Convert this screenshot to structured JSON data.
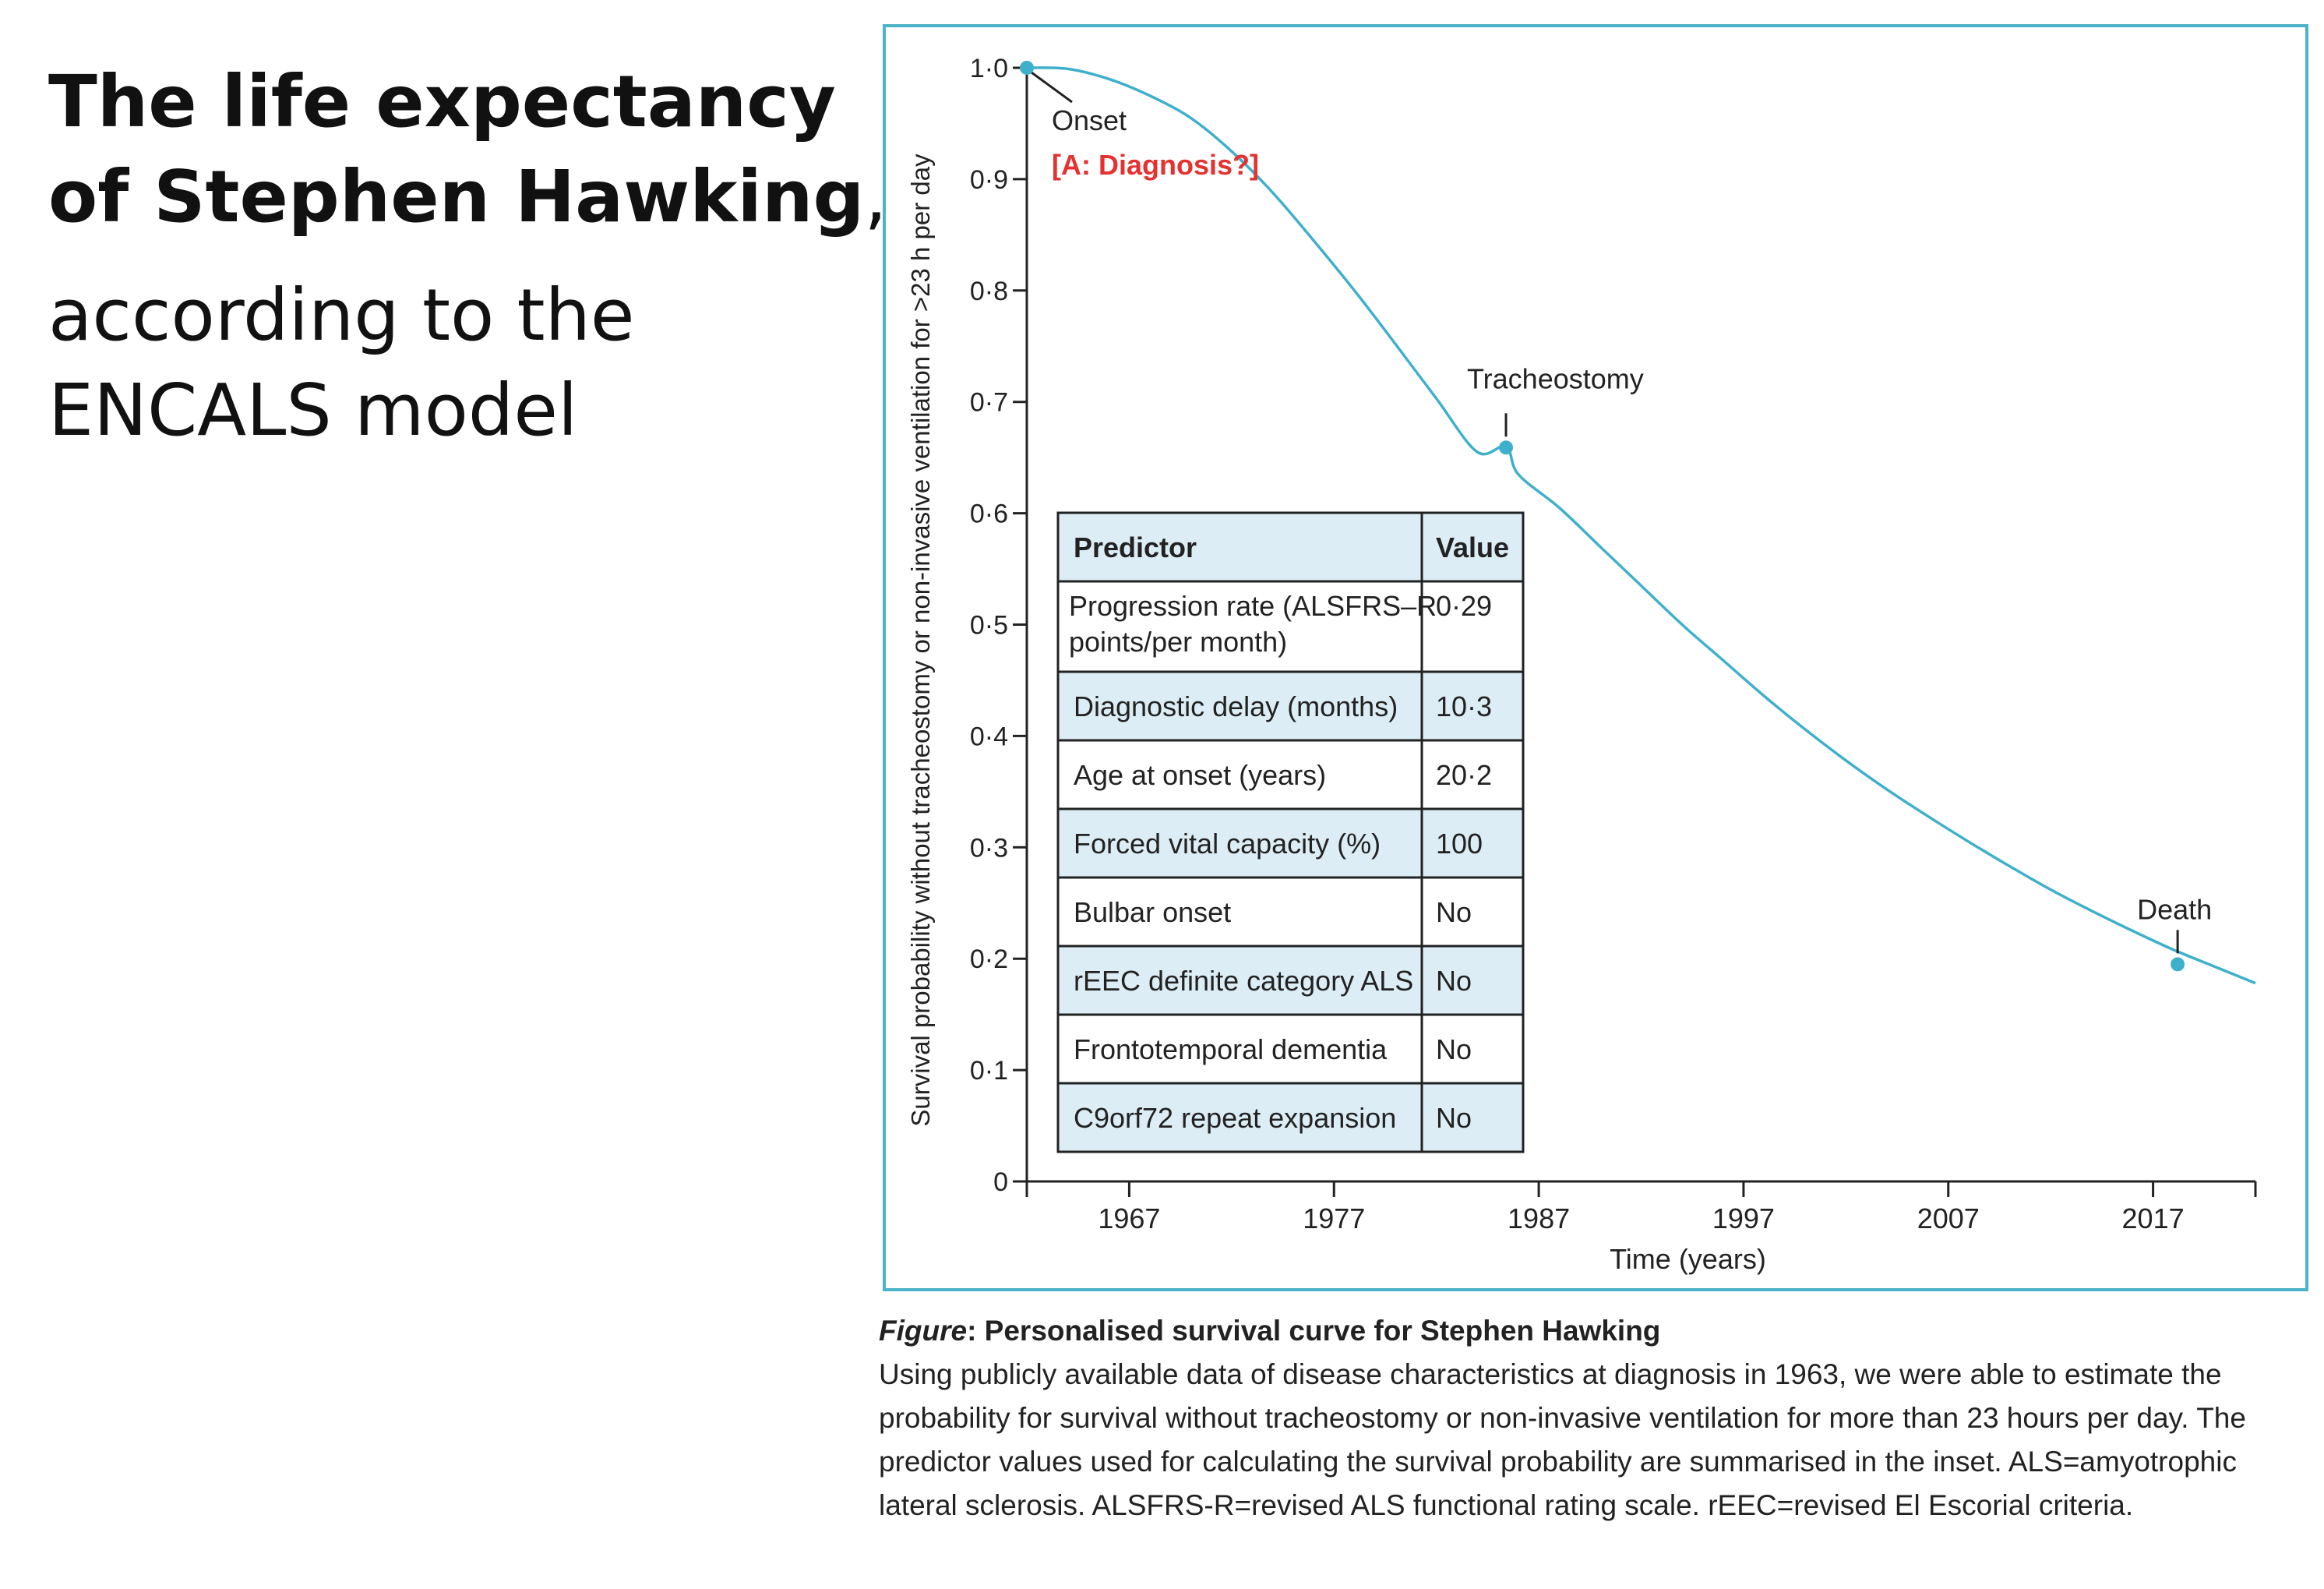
{
  "headline": {
    "line1": "The life expectancy",
    "line2": "of Stephen Hawking",
    "line2_suffix": ",",
    "line3": "according to the",
    "line4": "ENCALS model"
  },
  "chart_data": {
    "type": "line",
    "ylabel": "Survival probability without tracheostomy or non-invasive ventilation for >23 h per day",
    "xlabel": "Time (years)",
    "xlim": [
      1962,
      2022
    ],
    "ylim": [
      0,
      1
    ],
    "x_ticks": [
      "1967",
      "1977",
      "1987",
      "1997",
      "2007",
      "2017"
    ],
    "y_ticks": [
      "0",
      "0·1",
      "0·2",
      "0·3",
      "0·4",
      "0·5",
      "0·6",
      "0·7",
      "0·8",
      "0·9",
      "1·0"
    ],
    "colors": {
      "curve": "#3fb0cc",
      "frame": "#4bb4c9",
      "table_fill": "#dcedf6",
      "annotation_red": "#e5312f"
    },
    "series": [
      {
        "x": [
          1962,
          1964,
          1966,
          1968,
          1970,
          1972,
          1974,
          1976,
          1978,
          1980,
          1982,
          1984,
          1985.4,
          1986,
          1988,
          1990,
          1992,
          1994,
          1996,
          1998,
          2000,
          2002,
          2004,
          2006,
          2008,
          2010,
          2012,
          2014,
          2016,
          2018,
          2020,
          2022
        ],
        "values": [
          1.0,
          0.999,
          0.99,
          0.975,
          0.955,
          0.925,
          0.888,
          0.845,
          0.8,
          0.752,
          0.703,
          0.655,
          0.66,
          0.635,
          0.605,
          0.57,
          0.535,
          0.5,
          0.468,
          0.436,
          0.406,
          0.378,
          0.352,
          0.328,
          0.305,
          0.283,
          0.262,
          0.243,
          0.225,
          0.208,
          0.193,
          0.178
        ]
      }
    ],
    "events": [
      {
        "label": "Onset",
        "x": 1962,
        "y": 1.0
      },
      {
        "label": "Tracheostomy",
        "x": 1985.4,
        "y": 0.659
      },
      {
        "label": "Death",
        "x": 2018.2,
        "y": 0.195
      }
    ],
    "annotation": "[A: Diagnosis?]",
    "table": {
      "headers": [
        "Predictor",
        "Value"
      ],
      "rows": [
        {
          "predictor": [
            "Progression rate (ALSFRS–R",
            "points/per month)"
          ],
          "value": "0·29"
        },
        {
          "predictor": [
            "Diagnostic delay (months)"
          ],
          "value": "10·3"
        },
        {
          "predictor": [
            "Age at onset (years)"
          ],
          "value": "20·2"
        },
        {
          "predictor": [
            "Forced vital capacity (%)"
          ],
          "value": "100"
        },
        {
          "predictor": [
            "Bulbar onset"
          ],
          "value": "No"
        },
        {
          "predictor": [
            "rEEC definite category ALS"
          ],
          "value": "No"
        },
        {
          "predictor": [
            "Frontotemporal dementia"
          ],
          "value": "No"
        },
        {
          "predictor": [
            "C9orf72 repeat expansion"
          ],
          "value": "No"
        }
      ]
    }
  },
  "caption": {
    "label": "Figure",
    "title": ": Personalised survival curve for Stephen Hawking",
    "body": "Using publicly available data of disease characteristics at diagnosis in 1963, we were able to estimate the probability for survival without tracheostomy or non-invasive ventilation for more than 23 hours per day. The predictor values used for calculating the survival probability are summarised in the inset. ALS=amyotrophic lateral sclerosis. ALSFRS-R=revised ALS functional rating scale. rEEC=revised El Escorial criteria."
  }
}
